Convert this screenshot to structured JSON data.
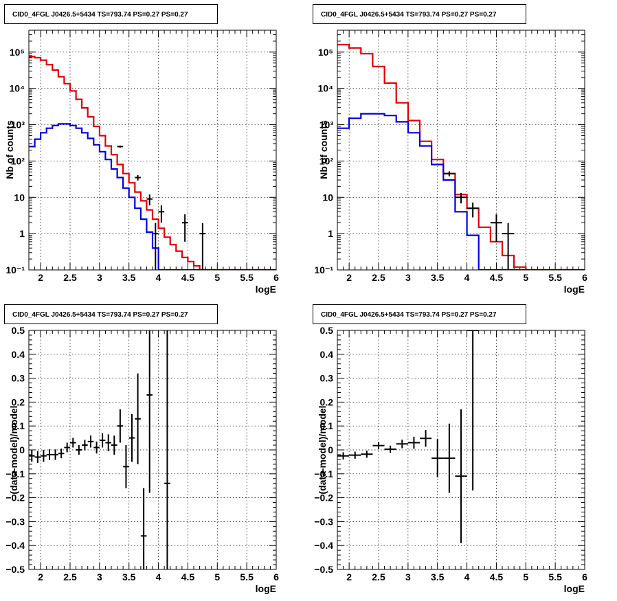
{
  "chart_data": [
    {
      "type": "histogram-line",
      "panel": "top-left",
      "title": "CID0_4FGL J0426.5+5434 TS=793.74 PS=0.27 PS=0.27",
      "xlabel": "logE",
      "ylabel": "Nb of counts",
      "xlim": [
        1.8,
        6
      ],
      "ylim": [
        0.1,
        400000
      ],
      "log_y": true,
      "grid": true,
      "x_ticks": [
        "2",
        "2.5",
        "3",
        "3.5",
        "4",
        "4.5",
        "5",
        "5.5",
        "6"
      ],
      "y_ticks": [
        "10⁻¹",
        "1",
        "10",
        "10²",
        "10³",
        "10⁴",
        "10⁵"
      ],
      "bin_edges": [
        1.8,
        1.9,
        2.0,
        2.1,
        2.2,
        2.3,
        2.4,
        2.5,
        2.6,
        2.7,
        2.8,
        2.9,
        3.0,
        3.1,
        3.2,
        3.3,
        3.4,
        3.5,
        3.6,
        3.7,
        3.8,
        3.9,
        4.0,
        4.1,
        4.2,
        4.3,
        4.4,
        4.5,
        4.6,
        4.7,
        4.8,
        4.9,
        5.0,
        5.1,
        5.2,
        5.3,
        5.4,
        5.5,
        5.6,
        5.7,
        5.8,
        5.9,
        6.0
      ],
      "series": [
        {
          "color": "#e00000",
          "values": [
            75000,
            70000,
            60000,
            45000,
            32000,
            21000,
            13500,
            8500,
            5000,
            2900,
            1650,
            900,
            500,
            260,
            150,
            80,
            45,
            25,
            14,
            8,
            4.5,
            2.5,
            1.4,
            0.8,
            0.5,
            0.33,
            0.22,
            0.17,
            0.13,
            0.1,
            0.1,
            0.1,
            0.1,
            0.1,
            0.1,
            0.1,
            0.1,
            0.1,
            0.1,
            0.1,
            0.1,
            0.1
          ]
        },
        {
          "color": "#0000e0",
          "values": [
            250,
            400,
            600,
            800,
            950,
            1050,
            1050,
            950,
            800,
            600,
            420,
            280,
            180,
            110,
            60,
            35,
            18,
            10,
            5,
            2.5,
            1.1,
            0.4,
            0.1,
            0.1,
            0.1,
            0.1,
            0.1,
            0.1,
            0.1,
            0.1,
            0.1,
            0.1,
            0.1,
            0.1,
            0.1,
            0.1,
            0.1,
            0.1,
            0.1,
            0.1,
            0.1,
            0.1
          ]
        }
      ],
      "points": [
        {
          "x": 3.35,
          "y": 250,
          "err": 16
        },
        {
          "x": 3.65,
          "y": 35,
          "err": 6
        },
        {
          "x": 3.85,
          "y": 9,
          "err": 3
        },
        {
          "x": 3.95,
          "y": 1,
          "err": 0.95
        },
        {
          "x": 4.05,
          "y": 4,
          "err": 2
        },
        {
          "x": 4.45,
          "y": 2,
          "err": 1.4
        },
        {
          "x": 4.75,
          "y": 1,
          "err": 0.95
        }
      ]
    },
    {
      "type": "histogram-line",
      "panel": "top-right",
      "title": "CID0_4FGL J0426.5+5434 TS=793.74 PS=0.27 PS=0.27",
      "xlabel": "logE",
      "ylabel": "Nb of counts",
      "xlim": [
        1.8,
        6
      ],
      "ylim": [
        0.1,
        400000
      ],
      "log_y": true,
      "grid": true,
      "x_ticks": [
        "2",
        "2.5",
        "3",
        "3.5",
        "4",
        "4.5",
        "5",
        "5.5",
        "6"
      ],
      "y_ticks": [
        "10⁻¹",
        "1",
        "10",
        "10²",
        "10³",
        "10⁴",
        "10⁵"
      ],
      "bin_edges": [
        1.8,
        2.0,
        2.2,
        2.4,
        2.6,
        2.8,
        3.0,
        3.2,
        3.4,
        3.6,
        3.8,
        4.0,
        4.2,
        4.4,
        4.6,
        4.8,
        5.0,
        5.2,
        5.4,
        5.6,
        5.8,
        6.0
      ],
      "series": [
        {
          "color": "#e00000",
          "values": [
            160000,
            130000,
            90000,
            40000,
            14000,
            4000,
            1300,
            350,
            110,
            45,
            12,
            5,
            1.5,
            0.6,
            0.25,
            0.12,
            0.1,
            0.1,
            0.1,
            0.1,
            0.1
          ]
        },
        {
          "color": "#0000e0",
          "values": [
            800,
            1500,
            2000,
            2000,
            1800,
            1200,
            600,
            260,
            80,
            30,
            4,
            0.9,
            0.1,
            0.1,
            0.1,
            0.1,
            0.1,
            0.1,
            0.1,
            0.1,
            0.1
          ]
        }
      ],
      "points": [
        {
          "x": 3.7,
          "y": 45,
          "err": 7
        },
        {
          "x": 3.9,
          "y": 10,
          "err": 3.2
        },
        {
          "x": 4.1,
          "y": 5,
          "err": 2.2
        },
        {
          "x": 4.5,
          "y": 2,
          "err": 1.4
        },
        {
          "x": 4.7,
          "y": 1,
          "err": 0.95
        }
      ]
    },
    {
      "type": "scatter",
      "panel": "bottom-left",
      "title": "CID0_4FGL J0426.5+5434 TS=793.74 PS=0.27 PS=0.27",
      "xlabel": "logE",
      "ylabel": "(data-model)/model",
      "xlim": [
        1.8,
        6
      ],
      "ylim": [
        -0.5,
        0.5
      ],
      "log_y": false,
      "grid": true,
      "x_ticks": [
        "2",
        "2.5",
        "3",
        "3.5",
        "4",
        "4.5",
        "5",
        "5.5",
        "6"
      ],
      "y_ticks": [
        "−0.5",
        "−0.4",
        "−0.3",
        "−0.2",
        "−0.1",
        "0",
        "0.1",
        "0.2",
        "0.3",
        "0.4",
        "0.5"
      ],
      "x_halfwidth": 0.05,
      "points": [
        {
          "x": 1.85,
          "y": -0.025,
          "err": 0.025
        },
        {
          "x": 1.95,
          "y": -0.03,
          "err": 0.025
        },
        {
          "x": 2.05,
          "y": -0.025,
          "err": 0.025
        },
        {
          "x": 2.15,
          "y": -0.02,
          "err": 0.022
        },
        {
          "x": 2.25,
          "y": -0.02,
          "err": 0.022
        },
        {
          "x": 2.35,
          "y": -0.015,
          "err": 0.02
        },
        {
          "x": 2.45,
          "y": 0.01,
          "err": 0.02
        },
        {
          "x": 2.55,
          "y": 0.03,
          "err": 0.02
        },
        {
          "x": 2.65,
          "y": 0.0,
          "err": 0.02
        },
        {
          "x": 2.75,
          "y": 0.02,
          "err": 0.022
        },
        {
          "x": 2.85,
          "y": 0.035,
          "err": 0.025
        },
        {
          "x": 2.95,
          "y": 0.01,
          "err": 0.025
        },
        {
          "x": 3.05,
          "y": 0.04,
          "err": 0.03
        },
        {
          "x": 3.15,
          "y": 0.03,
          "err": 0.035
        },
        {
          "x": 3.25,
          "y": 0.02,
          "err": 0.04
        },
        {
          "x": 3.35,
          "y": 0.1,
          "err": 0.07
        },
        {
          "x": 3.45,
          "y": -0.07,
          "err": 0.09
        },
        {
          "x": 3.55,
          "y": 0.05,
          "err": 0.1
        },
        {
          "x": 3.65,
          "y": 0.13,
          "err": 0.19
        },
        {
          "x": 3.75,
          "y": -0.36,
          "err": 0.2
        },
        {
          "x": 3.85,
          "y": 0.23,
          "err": 0.41
        },
        {
          "x": 4.15,
          "y": -0.14,
          "err": 0.8
        }
      ]
    },
    {
      "type": "scatter",
      "panel": "bottom-right",
      "title": "CID0_4FGL J0426.5+5434 TS=793.74 PS=0.27 PS=0.27",
      "xlabel": "logE",
      "ylabel": "(data-model)/model",
      "xlim": [
        1.8,
        6
      ],
      "ylim": [
        -0.5,
        0.5
      ],
      "log_y": false,
      "grid": true,
      "x_ticks": [
        "2",
        "2.5",
        "3",
        "3.5",
        "4",
        "4.5",
        "5",
        "5.5",
        "6"
      ],
      "y_ticks": [
        "−0.5",
        "−0.4",
        "−0.3",
        "−0.2",
        "−0.1",
        "0",
        "0.1",
        "0.2",
        "0.3",
        "0.4",
        "0.5"
      ],
      "x_halfwidth": 0.1,
      "points": [
        {
          "x": 1.9,
          "y": -0.025,
          "err": 0.015
        },
        {
          "x": 2.1,
          "y": -0.022,
          "err": 0.015
        },
        {
          "x": 2.3,
          "y": -0.018,
          "err": 0.015
        },
        {
          "x": 2.5,
          "y": 0.018,
          "err": 0.015
        },
        {
          "x": 2.7,
          "y": 0.003,
          "err": 0.015
        },
        {
          "x": 2.9,
          "y": 0.025,
          "err": 0.018
        },
        {
          "x": 3.1,
          "y": 0.03,
          "err": 0.025
        },
        {
          "x": 3.3,
          "y": 0.048,
          "err": 0.035
        },
        {
          "x": 3.5,
          "y": -0.035,
          "err": 0.08
        },
        {
          "x": 3.7,
          "y": -0.035,
          "err": 0.145
        },
        {
          "x": 3.9,
          "y": -0.11,
          "err": 0.28
        },
        {
          "x": 4.1,
          "y": 0.5,
          "err": 0.67
        }
      ]
    }
  ]
}
